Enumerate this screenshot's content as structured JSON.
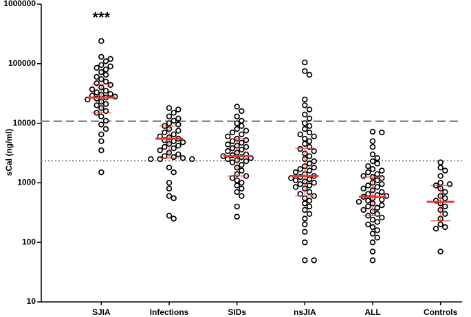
{
  "chart_data": {
    "type": "dot",
    "y_label": "sCal (ng/ml)",
    "y_scale": "log",
    "ylim": [
      10,
      1000000
    ],
    "yticks": [
      10,
      100,
      1000,
      10000,
      100000,
      1000000
    ],
    "annotation": "***",
    "point_color": "#000000",
    "summary_color": "#e53a2f",
    "ref_lines": [
      {
        "value": 10800,
        "style": "dashed",
        "color": "#888888"
      },
      {
        "value": 2350,
        "style": "dotted",
        "color": "#888888"
      }
    ],
    "series": [
      {
        "name": "SJIA",
        "median": 27000,
        "q1": 15000,
        "q3": 45000,
        "values": [
          240000,
          130000,
          120000,
          110000,
          95000,
          90000,
          85000,
          80000,
          72000,
          65000,
          60000,
          55000,
          50000,
          47000,
          44000,
          40000,
          37000,
          35000,
          33000,
          31000,
          30000,
          29000,
          28000,
          27000,
          26000,
          25000,
          23000,
          21000,
          20000,
          18000,
          16000,
          15000,
          13000,
          11000,
          9500,
          8000,
          6500,
          5000,
          3500,
          1500
        ]
      },
      {
        "name": "Infections",
        "median": 5500,
        "q1": 2600,
        "q3": 9000,
        "values": [
          18000,
          17000,
          15000,
          13000,
          12000,
          11000,
          10000,
          9500,
          9000,
          8000,
          7500,
          7000,
          6500,
          6000,
          5800,
          5500,
          5200,
          5000,
          4800,
          4500,
          4200,
          4000,
          3800,
          3500,
          3200,
          3000,
          2800,
          2700,
          2600,
          2500,
          2500,
          2500,
          1800,
          1500,
          1000,
          800,
          600,
          550,
          280,
          250
        ]
      },
      {
        "name": "SIDs",
        "median": 2800,
        "q1": 1300,
        "q3": 5500,
        "values": [
          19000,
          16000,
          13000,
          11000,
          10000,
          9000,
          8000,
          7500,
          7000,
          6500,
          6000,
          5500,
          5200,
          5000,
          4700,
          4400,
          4200,
          4000,
          3800,
          3600,
          3400,
          3200,
          3000,
          2900,
          2800,
          2700,
          2600,
          2500,
          2400,
          2300,
          2200,
          2000,
          1800,
          1600,
          1400,
          1300,
          1200,
          1100,
          1000,
          900,
          800,
          700,
          600,
          400,
          270
        ]
      },
      {
        "name": "nsJIA",
        "median": 1300,
        "q1": 600,
        "q3": 3800,
        "values": [
          105000,
          75000,
          65000,
          25000,
          20000,
          17000,
          14000,
          12000,
          10000,
          9000,
          8000,
          7000,
          6500,
          6000,
          5500,
          5000,
          4500,
          4000,
          3700,
          3400,
          3100,
          2800,
          2500,
          2300,
          2100,
          1900,
          1800,
          1700,
          1600,
          1500,
          1400,
          1300,
          1250,
          1200,
          1150,
          1100,
          1050,
          1000,
          950,
          900,
          850,
          800,
          700,
          650,
          600,
          550,
          500,
          450,
          400,
          350,
          300,
          250,
          200,
          150,
          100,
          50,
          50
        ]
      },
      {
        "name": "ALL",
        "median": 580,
        "q1": 280,
        "q3": 1250,
        "values": [
          7200,
          7000,
          5000,
          4000,
          3000,
          2600,
          2300,
          2100,
          1900,
          1700,
          1600,
          1500,
          1400,
          1300,
          1250,
          1200,
          1100,
          1000,
          950,
          900,
          850,
          800,
          750,
          700,
          650,
          620,
          600,
          580,
          550,
          520,
          500,
          480,
          450,
          420,
          400,
          380,
          350,
          330,
          300,
          280,
          260,
          240,
          220,
          200,
          180,
          160,
          140,
          120,
          100,
          70,
          50
        ]
      },
      {
        "name": "Controls",
        "median": 480,
        "q1": 230,
        "q3": 900,
        "values": [
          2200,
          1800,
          1600,
          1300,
          1000,
          950,
          900,
          800,
          700,
          600,
          550,
          500,
          450,
          400,
          350,
          300,
          250,
          200,
          180,
          170,
          70
        ]
      }
    ]
  }
}
